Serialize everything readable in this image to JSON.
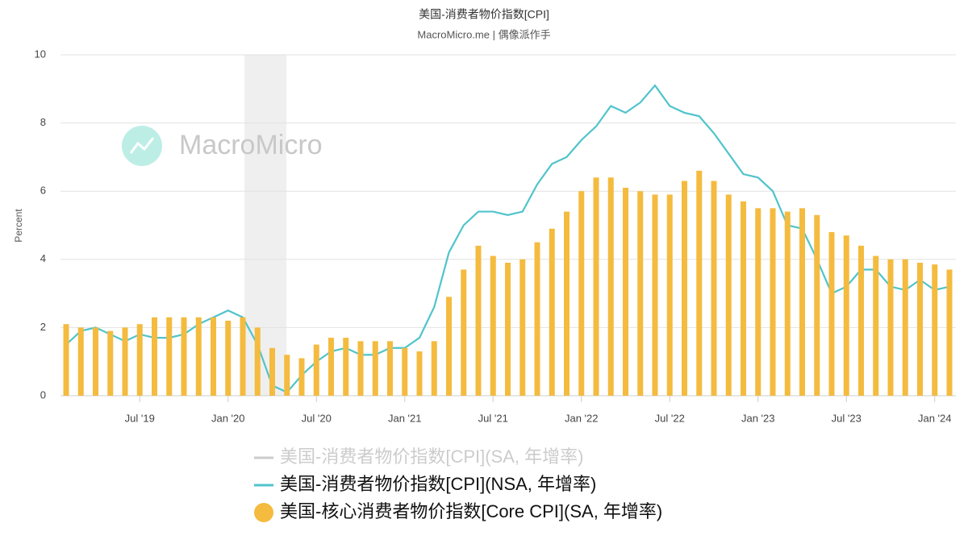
{
  "chart_data": {
    "type": "bar_line",
    "title": "美国-消费者物价指数[CPI]",
    "subtitle": "MacroMicro.me | 偶像派作手",
    "watermark": "MacroMicro",
    "y_label": "Percent",
    "ylim": [
      0,
      10
    ],
    "yticks": [
      0,
      2,
      4,
      6,
      8,
      10
    ],
    "grid": true,
    "categories": [
      null,
      null,
      null,
      null,
      null,
      "Jul '19",
      null,
      null,
      null,
      null,
      null,
      "Jan '20",
      null,
      null,
      null,
      null,
      null,
      "Jul '20",
      null,
      null,
      null,
      null,
      null,
      "Jan '21",
      null,
      null,
      null,
      null,
      null,
      "Jul '21",
      null,
      null,
      null,
      null,
      null,
      "Jan '22",
      null,
      null,
      null,
      null,
      null,
      "Jul '22",
      null,
      null,
      null,
      null,
      null,
      "Jan '23",
      null,
      null,
      null,
      null,
      null,
      "Jul '23",
      null,
      null,
      null,
      null,
      null,
      "Jan '24",
      null
    ],
    "series": [
      {
        "name": "美国-消费者物价指数[CPI](SA, 年增率)",
        "color": "#cccccc",
        "visible": false
      },
      {
        "name": "美国-消费者物价指数[CPI](NSA, 年增率)",
        "color": "#4fc4cc",
        "kind": "line",
        "values": [
          1.5,
          1.9,
          2.0,
          1.8,
          1.6,
          1.8,
          1.7,
          1.7,
          1.8,
          2.1,
          2.3,
          2.5,
          2.3,
          1.5,
          0.3,
          0.1,
          0.6,
          1.0,
          1.3,
          1.4,
          1.2,
          1.2,
          1.4,
          1.4,
          1.7,
          2.6,
          4.2,
          5.0,
          5.4,
          5.4,
          5.3,
          5.4,
          6.2,
          6.8,
          7.0,
          7.5,
          7.9,
          8.5,
          8.3,
          8.6,
          9.1,
          8.5,
          8.3,
          8.2,
          7.7,
          7.1,
          6.5,
          6.4,
          6.0,
          5.0,
          4.9,
          4.0,
          3.0,
          3.2,
          3.7,
          3.7,
          3.2,
          3.1,
          3.4,
          3.1,
          3.2
        ]
      },
      {
        "name": "美国-核心消费者物价指数[Core CPI](SA, 年增率)",
        "color": "#f4bb3f",
        "kind": "bar",
        "values": [
          2.1,
          2.0,
          2.0,
          1.9,
          2.0,
          2.1,
          2.3,
          2.3,
          2.3,
          2.3,
          2.3,
          2.2,
          2.3,
          2.0,
          1.4,
          1.2,
          1.1,
          1.5,
          1.7,
          1.7,
          1.6,
          1.6,
          1.6,
          1.4,
          1.3,
          1.6,
          2.9,
          3.7,
          4.4,
          4.1,
          3.9,
          4.0,
          4.5,
          4.9,
          5.4,
          6.0,
          6.4,
          6.4,
          6.1,
          6.0,
          5.9,
          5.9,
          6.3,
          6.6,
          6.3,
          5.9,
          5.7,
          5.5,
          5.5,
          5.4,
          5.5,
          5.3,
          4.8,
          4.7,
          4.4,
          4.1,
          4.0,
          4.0,
          3.9,
          3.85,
          3.7
        ]
      }
    ]
  }
}
